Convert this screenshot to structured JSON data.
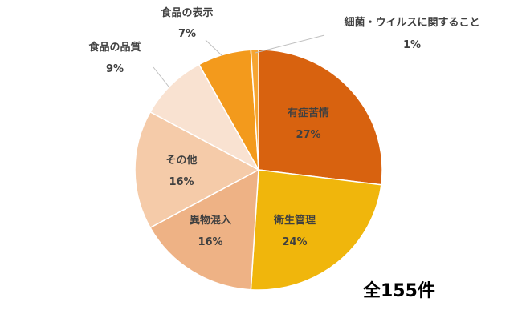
{
  "chart_data": {
    "type": "pie",
    "categories": [
      "有症苦情",
      "衛生管理",
      "異物混入",
      "その他",
      "食品の品質",
      "食品の表示",
      "細菌・ウイルスに関すること"
    ],
    "values": [
      27,
      24,
      16,
      16,
      9,
      7,
      1
    ],
    "value_labels": [
      "27%",
      "24%",
      "16%",
      "16%",
      "9%",
      "7%",
      "1%"
    ],
    "colors": [
      "#d8620f",
      "#f0b60c",
      "#eeb285",
      "#f5cba9",
      "#f9e2d1",
      "#f39a1c",
      "#f6a532"
    ],
    "legend": "none"
  },
  "annotation": {
    "total": "全155件"
  }
}
